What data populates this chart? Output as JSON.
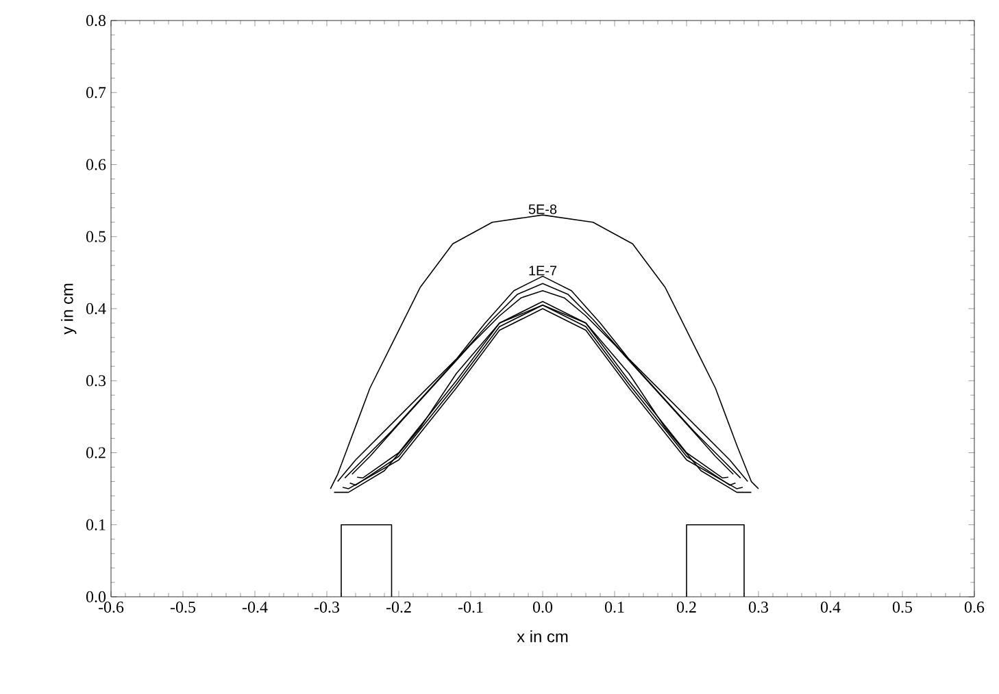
{
  "chart_data": {
    "type": "line",
    "xlabel": "x in cm",
    "ylabel": "y in cm",
    "xlim": [
      -0.6,
      0.6
    ],
    "ylim": [
      0,
      0.8
    ],
    "xticks": [
      {
        "value": -0.6,
        "label": "-0.6"
      },
      {
        "value": -0.5,
        "label": "-0.5"
      },
      {
        "value": -0.4,
        "label": "-0.4"
      },
      {
        "value": -0.3,
        "label": "-0.3"
      },
      {
        "value": -0.2,
        "label": "-0.2"
      },
      {
        "value": -0.1,
        "label": "-0.1"
      },
      {
        "value": 0,
        "label": "0.0"
      },
      {
        "value": 0.1,
        "label": "0.1"
      },
      {
        "value": 0.2,
        "label": "0.2"
      },
      {
        "value": 0.3,
        "label": "0.3"
      },
      {
        "value": 0.4,
        "label": "0.4"
      },
      {
        "value": 0.5,
        "label": "0.5"
      },
      {
        "value": 0.6,
        "label": "0.6"
      }
    ],
    "yticks": [
      {
        "value": 0,
        "label": "0.0"
      },
      {
        "value": 0.1,
        "label": "0.1"
      },
      {
        "value": 0.2,
        "label": "0.2"
      },
      {
        "value": 0.3,
        "label": "0.3"
      },
      {
        "value": 0.4,
        "label": "0.4"
      },
      {
        "value": 0.5,
        "label": "0.5"
      },
      {
        "value": 0.6,
        "label": "0.6"
      },
      {
        "value": 0.7,
        "label": "0.7"
      },
      {
        "value": 0.8,
        "label": "0.8"
      }
    ],
    "grid": false,
    "legend": false,
    "marker": "none",
    "line_style": "solid",
    "series": [
      {
        "name": "5E-8",
        "color": "#000000",
        "x": [
          -0.295,
          -0.285,
          -0.27,
          -0.255,
          -0.24,
          -0.21,
          -0.17,
          -0.125,
          -0.07,
          0,
          0.07,
          0.125,
          0.17,
          0.21,
          0.24,
          0.255,
          0.27,
          0.29,
          0.3
        ],
        "values": [
          0.15,
          0.17,
          0.21,
          0.25,
          0.29,
          0.35,
          0.43,
          0.49,
          0.52,
          0.53,
          0.52,
          0.49,
          0.43,
          0.35,
          0.29,
          0.25,
          0.21,
          0.16,
          0.15
        ]
      },
      {
        "color": "#000000",
        "x": [
          -0.29,
          -0.27,
          -0.22,
          -0.17,
          -0.12,
          -0.06,
          0,
          0.06,
          0.12,
          0.17,
          0.22,
          0.27,
          0.29
        ],
        "values": [
          0.145,
          0.145,
          0.175,
          0.235,
          0.31,
          0.38,
          0.405,
          0.38,
          0.31,
          0.235,
          0.175,
          0.145,
          0.145
        ]
      },
      {
        "name": "1E-7",
        "color": "#000000",
        "x": [
          -0.285,
          -0.26,
          -0.22,
          -0.17,
          -0.12,
          -0.08,
          -0.04,
          0,
          0.04,
          0.08,
          0.12,
          0.17,
          0.22,
          0.26,
          0.285
        ],
        "values": [
          0.16,
          0.19,
          0.23,
          0.28,
          0.33,
          0.38,
          0.425,
          0.445,
          0.425,
          0.38,
          0.33,
          0.28,
          0.23,
          0.19,
          0.16
        ]
      },
      {
        "color": "#000000",
        "x": [
          -0.278,
          -0.27,
          -0.2,
          -0.12,
          -0.06,
          0,
          0.06,
          0.12,
          0.2,
          0.27,
          0.278
        ],
        "values": [
          0.152,
          0.15,
          0.19,
          0.29,
          0.37,
          0.4,
          0.37,
          0.29,
          0.19,
          0.15,
          0.152
        ]
      },
      {
        "color": "#000000",
        "x": [
          -0.275,
          -0.25,
          -0.21,
          -0.16,
          -0.11,
          -0.07,
          -0.035,
          0,
          0.035,
          0.07,
          0.11,
          0.16,
          0.21,
          0.25,
          0.275
        ],
        "values": [
          0.165,
          0.19,
          0.23,
          0.285,
          0.34,
          0.385,
          0.42,
          0.435,
          0.42,
          0.385,
          0.34,
          0.285,
          0.23,
          0.19,
          0.165
        ]
      },
      {
        "color": "#000000",
        "x": [
          -0.268,
          -0.26,
          -0.2,
          -0.12,
          -0.06,
          0,
          0.06,
          0.12,
          0.2,
          0.26,
          0.268
        ],
        "values": [
          0.158,
          0.155,
          0.195,
          0.295,
          0.375,
          0.405,
          0.375,
          0.295,
          0.195,
          0.155,
          0.158
        ]
      },
      {
        "color": "#000000",
        "x": [
          -0.265,
          -0.24,
          -0.2,
          -0.15,
          -0.1,
          -0.06,
          -0.03,
          0,
          0.03,
          0.06,
          0.1,
          0.15,
          0.2,
          0.24,
          0.265
        ],
        "values": [
          0.17,
          0.195,
          0.24,
          0.295,
          0.35,
          0.39,
          0.415,
          0.425,
          0.415,
          0.39,
          0.35,
          0.295,
          0.24,
          0.195,
          0.17
        ]
      },
      {
        "color": "#000000",
        "x": [
          -0.258,
          -0.25,
          -0.2,
          -0.12,
          -0.06,
          0,
          0.06,
          0.12,
          0.2,
          0.25,
          0.258
        ],
        "values": [
          0.166,
          0.165,
          0.2,
          0.3,
          0.38,
          0.41,
          0.38,
          0.3,
          0.2,
          0.165,
          0.166
        ]
      },
      {
        "color": "#000000",
        "x": [
          -0.28,
          -0.28,
          -0.21,
          -0.21
        ],
        "values": [
          0,
          0.1,
          0.1,
          0
        ]
      },
      {
        "color": "#000000",
        "x": [
          0.2,
          0.2,
          0.28,
          0.28
        ],
        "values": [
          0,
          0.1,
          0.1,
          0
        ]
      }
    ]
  }
}
